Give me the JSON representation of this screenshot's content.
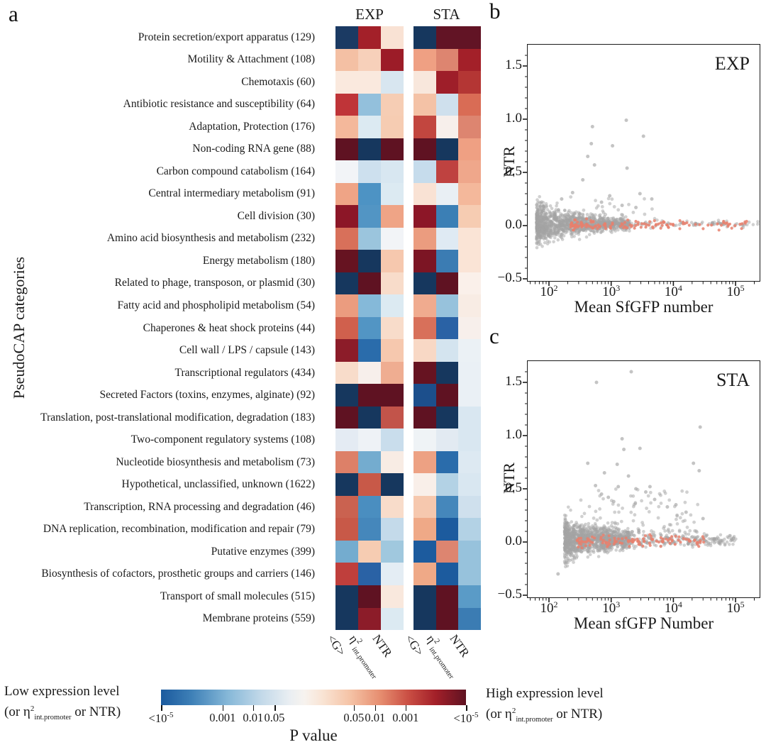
{
  "panel_a": {
    "letter": "a",
    "col_labels": {
      "g": "<G>",
      "eta_base": "η",
      "eta_sup": "2",
      "eta_sub": "int.promoter",
      "ntr": "NTR"
    }
  },
  "colorbar": {
    "title": "P value",
    "low_line1": "Low expression level",
    "high_line1": "High expression level",
    "paren_pre": "(or ",
    "eta": "η",
    "eta_sup": "2",
    "eta_sub": "int.promoter",
    "paren_post": " or NTR)",
    "gradient": [
      "#1b5a9e 0%",
      "#3e80b7 10%",
      "#86b8d8 22%",
      "#c3d9e9 33%",
      "#e9eef2 42%",
      "#f7f3ef 47%",
      "#f9e4d4 53%",
      "#f5c3a6 62%",
      "#e68d6f 72%",
      "#ca4f44 81%",
      "#a32029 90%",
      "#5f1222 100%"
    ],
    "ticks": [
      {
        "label": "<10",
        "sup": "-5",
        "pos": 0.0
      },
      {
        "label": "0.001",
        "sup": "",
        "pos": 0.202
      },
      {
        "label": "0.01",
        "sup": "",
        "pos": 0.302
      },
      {
        "label": "0.05",
        "sup": "",
        "pos": 0.372
      },
      {
        "label": "0.05",
        "sup": "",
        "pos": 0.632
      },
      {
        "label": "0.01",
        "sup": "",
        "pos": 0.702
      },
      {
        "label": "0.001",
        "sup": "",
        "pos": 0.802
      },
      {
        "label": "<10",
        "sup": "-5",
        "pos": 1.0
      }
    ]
  },
  "scatter_letters": [
    "b",
    "c"
  ],
  "chart_data": [
    {
      "type": "heatmap",
      "ylabel": "PseudoCAP categories",
      "xlabel_groups": [
        "EXP",
        "STA"
      ],
      "columns": [
        "<G>",
        "η2 int.promoter",
        "NTR"
      ],
      "colorbar_meaning": "cell color encodes P value; blue = significantly low expression (or η2 or NTR), red = significantly high; see P-value colorbar",
      "categories": [
        "Protein secretion/export apparatus (129)",
        "Motility & Attachment (108)",
        "Chemotaxis (60)",
        "Antibiotic resistance and susceptibility (64)",
        "Adaptation, Protection (176)",
        "Non-coding RNA gene (88)",
        "Carbon compound catabolism (164)",
        "Central intermediary metabolism (91)",
        "Cell division (30)",
        "Amino acid biosynthesis and metabolism (232)",
        "Energy metabolism (180)",
        "Related to phage, transposon, or plasmid (30)",
        "Fatty acid and phospholipid metabolism (54)",
        "Chaperones & heat shock proteins (44)",
        "Cell wall / LPS / capsule (143)",
        "Transcriptional regulators (434)",
        "Secreted Factors (toxins, enzymes, alginate) (92)",
        "Translation, post-translational modification, degradation (183)",
        "Two-component regulatory systems (108)",
        "Nucleotide biosynthesis and metabolism (73)",
        "Hypothetical, unclassified, unknown (1622)",
        "Transcription, RNA processing and degradation (46)",
        "DNA replication, recombination, modification and repair (79)",
        "Putative enzymes (399)",
        "Biosynthesis of cofactors, prosthetic groups and carriers (146)",
        "Transport of small molecules (515)",
        "Membrane proteins (559)"
      ],
      "exp_colors": [
        [
          "#1b3a63",
          "#a32029",
          "#f9e2d4"
        ],
        [
          "#f4c0a4",
          "#f7d0ba",
          "#9c1c28"
        ],
        [
          "#fae9de",
          "#fae9de",
          "#d8e6f0"
        ],
        [
          "#bf3438",
          "#93c0dc",
          "#f6cdb4"
        ],
        [
          "#f4b89b",
          "#dceaf2",
          "#f6ccb2"
        ],
        [
          "#5f1222",
          "#16375e",
          "#5f1222"
        ],
        [
          "#f2f4f7",
          "#cde0ee",
          "#d8e7f1"
        ],
        [
          "#efa486",
          "#4d93c4",
          "#dceaf2"
        ],
        [
          "#8c1627",
          "#5295c4",
          "#efa486"
        ],
        [
          "#d8705a",
          "#9bc5dd",
          "#f2f4f7"
        ],
        [
          "#661321",
          "#16375e",
          "#f6c8ae"
        ],
        [
          "#16375e",
          "#5f1222",
          "#f8dcca"
        ],
        [
          "#eb9c7f",
          "#85b9d9",
          "#dceaf2"
        ],
        [
          "#d0604d",
          "#5295c4",
          "#f8dcca"
        ],
        [
          "#8c1c29",
          "#2a6cab",
          "#f6c8ae"
        ],
        [
          "#f8dcca",
          "#f7efeb",
          "#efad91"
        ],
        [
          "#16375e",
          "#5f1222",
          "#5f1222"
        ],
        [
          "#5f1222",
          "#16375e",
          "#c2544a"
        ],
        [
          "#e4ebf3",
          "#eef2f6",
          "#c9ddec"
        ],
        [
          "#dd8068",
          "#74accf",
          "#f8ece4"
        ],
        [
          "#16375e",
          "#c85948",
          "#16375e"
        ],
        [
          "#ca6250",
          "#4a8ec0",
          "#f8dcca"
        ],
        [
          "#c85948",
          "#4587bb",
          "#c4daea"
        ],
        [
          "#74accf",
          "#f6ccb2",
          "#a0c8de"
        ],
        [
          "#bf3f3c",
          "#2a62a5",
          "#e4edf4"
        ],
        [
          "#16375e",
          "#5f1222",
          "#f9e8dd"
        ],
        [
          "#16375e",
          "#8c1c29",
          "#dceaf2"
        ]
      ],
      "sta_colors": [
        [
          "#16375e",
          "#621425",
          "#621425"
        ],
        [
          "#efa083",
          "#dd8570",
          "#a32029"
        ],
        [
          "#f8e7dc",
          "#9e1e29",
          "#b43634"
        ],
        [
          "#f4c2a6",
          "#cfe0ed",
          "#d96c55"
        ],
        [
          "#c2463f",
          "#f7efeb",
          "#dd8570"
        ],
        [
          "#5f1222",
          "#16375e",
          "#efa083"
        ],
        [
          "#c6dcec",
          "#bf4240",
          "#efa78b"
        ],
        [
          "#f9e2d4",
          "#e9eff4",
          "#f4b89b"
        ],
        [
          "#8c1627",
          "#3b7fb5",
          "#f6ccb2"
        ],
        [
          "#eb9c7f",
          "#dfeaf3",
          "#fae4d6"
        ],
        [
          "#7c1524",
          "#3b7cb3",
          "#fae4d6"
        ],
        [
          "#16375e",
          "#5f1222",
          "#faf0ea"
        ],
        [
          "#f0ab8f",
          "#97c2dc",
          "#f8ece4"
        ],
        [
          "#d8705a",
          "#2a62a5",
          "#f7efeb"
        ],
        [
          "#f8d8c5",
          "#d4e4ef",
          "#ebf1f5"
        ],
        [
          "#661321",
          "#16375e",
          "#eaf0f5"
        ],
        [
          "#1c4f8c",
          "#5f1222",
          "#eaf0f5"
        ],
        [
          "#5f1222",
          "#16375e",
          "#d9e7f1"
        ],
        [
          "#eff3f6",
          "#e2eaf2",
          "#d9e7f1"
        ],
        [
          "#eda183",
          "#2a6cab",
          "#dde9f2"
        ],
        [
          "#f9efe9",
          "#b3d2e5",
          "#d9e7f1"
        ],
        [
          "#f6c8ae",
          "#4587bb",
          "#cfe0ed"
        ],
        [
          "#efa987",
          "#1c5b9e",
          "#b3d2e5"
        ],
        [
          "#1c5b9e",
          "#dd8570",
          "#97c2dc"
        ],
        [
          "#efa987",
          "#1c5b9e",
          "#97c2dc"
        ],
        [
          "#16375e",
          "#5f1222",
          "#5a9bc7"
        ],
        [
          "#16375e",
          "#5f1222",
          "#3b7cb3"
        ]
      ]
    },
    {
      "type": "scatter",
      "title": "EXP",
      "xlabel": "Mean SfGFP number",
      "ylabel": "NTR",
      "x_scale": "log",
      "xlim": [
        45,
        250000
      ],
      "ylim": [
        -0.52,
        1.7
      ],
      "yticks": [
        1.5,
        1.0,
        0.5,
        0.0,
        -0.5
      ],
      "xticks_exp": [
        "2",
        "3",
        "4",
        "5"
      ],
      "gray_color": "#a4a4a4",
      "red_color": "#e8806d",
      "seed": 42,
      "cloud": {
        "n_gray": 1300,
        "lx_min": 1.8,
        "lx_max": 5.38,
        "core_span": 1.5,
        "core_pow": 1.7,
        "tail_frac": 0.1,
        "tail_lx0": 2.5,
        "sigma_base": 0.013,
        "sigma_amp": 0.085,
        "sigma_decay": 0.8,
        "y_center": 0.015,
        "lb_amp": 0.2,
        "lb_decay": 0.7,
        "lb_base": 0.04,
        "mid_n": 22,
        "mid_lx": [
          2.25,
          3.7
        ],
        "mid_y": [
          0.1,
          0.34
        ]
      },
      "red": {
        "n": 130,
        "lx_min": 2.35,
        "lx_span": 2.9,
        "skew": 1.6,
        "sigma": 0.022
      },
      "outliers_gray": [
        [
          500,
          0.93
        ],
        [
          1750,
          0.99
        ],
        [
          3300,
          0.84
        ],
        [
          480,
          0.77
        ],
        [
          1050,
          0.75
        ],
        [
          420,
          0.65
        ],
        [
          540,
          0.57
        ],
        [
          1800,
          0.54
        ],
        [
          350,
          0.43
        ],
        [
          240,
          0.31
        ],
        [
          2900,
          0.3
        ],
        [
          950,
          0.28
        ],
        [
          160,
          0.25
        ],
        [
          4500,
          0.25
        ],
        [
          700,
          0.22
        ],
        [
          1500,
          0.19
        ],
        [
          2500,
          0.17
        ]
      ]
    },
    {
      "type": "scatter",
      "title": "STA",
      "xlabel": "Mean sfGFP Number",
      "ylabel": "NTR",
      "x_scale": "log",
      "xlim": [
        45,
        250000
      ],
      "ylim": [
        -0.52,
        1.7
      ],
      "yticks": [
        1.5,
        1.0,
        0.5,
        0.0,
        -0.5
      ],
      "xticks_exp": [
        "2",
        "3",
        "4",
        "5"
      ],
      "gray_color": "#a4a4a4",
      "red_color": "#e8806d",
      "seed": 1337,
      "cloud": {
        "n_gray": 1300,
        "lx_min": 2.25,
        "lx_max": 5.02,
        "core_span": 1.05,
        "core_pow": 1.5,
        "tail_frac": 0.22,
        "tail_lx0": 2.8,
        "sigma_base": 0.02,
        "sigma_amp": 0.075,
        "sigma_decay": 0.9,
        "y_center": 0.02,
        "lb_amp": 0.22,
        "lb_decay": 0.5,
        "lb_base": 0.035,
        "mid_n": 110,
        "mid_lx": [
          2.5,
          4.4
        ],
        "mid_y": [
          0.09,
          0.5
        ]
      },
      "red": {
        "n": 110,
        "lx_min": 2.45,
        "lx_span": 2.05,
        "skew": 1.4,
        "sigma": 0.025
      },
      "outliers_gray": [
        [
          2100,
          1.6
        ],
        [
          580,
          1.5
        ],
        [
          27000,
          1.08
        ],
        [
          1500,
          0.97
        ],
        [
          1600,
          0.87
        ],
        [
          2900,
          0.88
        ],
        [
          420,
          0.74
        ],
        [
          1250,
          0.73
        ],
        [
          21000,
          0.74
        ],
        [
          26000,
          0.67
        ],
        [
          780,
          0.65
        ],
        [
          1900,
          0.62
        ],
        [
          560,
          0.53
        ],
        [
          1300,
          0.52
        ],
        [
          2500,
          0.5
        ],
        [
          4200,
          0.52
        ],
        [
          3600,
          0.47
        ],
        [
          700,
          0.45
        ],
        [
          900,
          0.42
        ],
        [
          5000,
          0.4
        ],
        [
          11000,
          0.35
        ],
        [
          16000,
          0.28
        ],
        [
          8000,
          0.33
        ],
        [
          30000,
          0.22
        ],
        [
          1100,
          0.38
        ],
        [
          140,
          -0.3
        ]
      ]
    }
  ]
}
